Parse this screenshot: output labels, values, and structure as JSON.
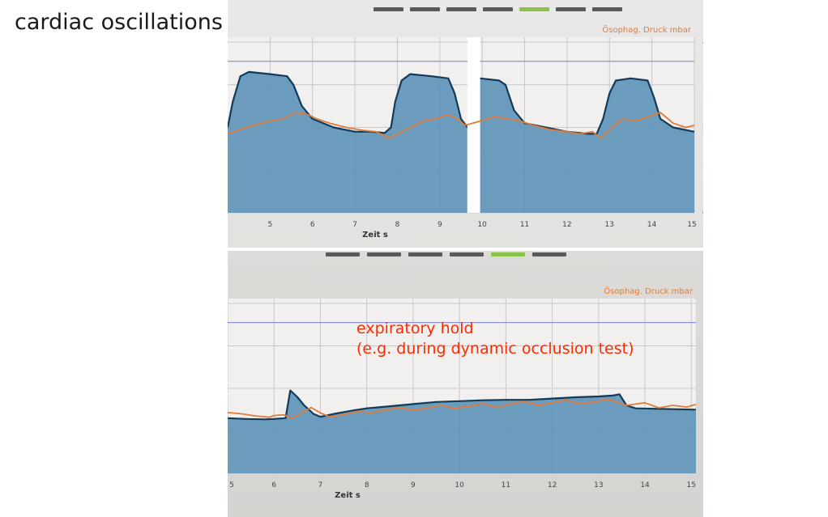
{
  "slide_title": "cardiac oscillations",
  "colors": {
    "area_fill": "#5f95b8",
    "area_line": "#123a5a",
    "esophageal": "#e07b39",
    "reference_line": "#8a90dd",
    "annotation": "#ff2a00",
    "grid": "#c7c7c9",
    "tab_gray": "#5a5a5a",
    "tab_green": "#8bc34a"
  },
  "chart_data": [
    {
      "type": "line",
      "title": "Ösophag. Druck mbar",
      "xlabel": "Zeit s",
      "ylabel": "",
      "xlim": [
        4.0,
        15.0
      ],
      "ylim": [
        0,
        40
      ],
      "x_ticks": [
        "5",
        "6",
        "7",
        "8",
        "9",
        "10",
        "11",
        "12",
        "13",
        "14",
        "15"
      ],
      "y_ticks": [
        "0",
        "10",
        "20",
        "30",
        "40"
      ],
      "reference_line": 35.5,
      "tabs": 7,
      "active_tab": 4,
      "gap": [
        9.65,
        9.95
      ],
      "series": [
        {
          "style": "area",
          "points": [
            [
              4.0,
              20
            ],
            [
              4.12,
              26
            ],
            [
              4.3,
              32
            ],
            [
              4.5,
              33
            ],
            [
              5.0,
              32.5
            ],
            [
              5.4,
              32
            ],
            [
              5.55,
              30
            ],
            [
              5.75,
              25
            ],
            [
              6.0,
              22
            ],
            [
              6.5,
              20
            ],
            [
              7.0,
              19
            ],
            [
              7.4,
              19
            ],
            [
              7.7,
              18.7
            ],
            [
              7.85,
              20
            ],
            [
              7.95,
              26
            ],
            [
              8.1,
              31
            ],
            [
              8.3,
              32.5
            ],
            [
              8.8,
              32
            ],
            [
              9.2,
              31.5
            ],
            [
              9.35,
              28
            ],
            [
              9.5,
              22
            ],
            [
              9.65,
              20
            ]
          ]
        },
        {
          "style": "area",
          "points": [
            [
              9.95,
              31.5
            ],
            [
              10.4,
              31
            ],
            [
              10.55,
              30
            ],
            [
              10.75,
              24
            ],
            [
              11.0,
              21
            ],
            [
              11.5,
              20
            ],
            [
              12.0,
              19
            ],
            [
              12.5,
              18.5
            ],
            [
              12.7,
              18.5
            ],
            [
              12.85,
              22
            ],
            [
              13.0,
              28
            ],
            [
              13.15,
              31
            ],
            [
              13.5,
              31.5
            ],
            [
              13.9,
              31
            ],
            [
              14.05,
              27
            ],
            [
              14.2,
              22
            ],
            [
              14.5,
              20
            ],
            [
              15.0,
              19
            ]
          ]
        },
        {
          "name": "Ösophag. Druck",
          "style": "line",
          "points": [
            [
              4.0,
              18.5
            ],
            [
              4.3,
              19.5
            ],
            [
              4.6,
              20.5
            ],
            [
              5.0,
              21.5
            ],
            [
              5.3,
              22
            ],
            [
              5.6,
              23.5
            ],
            [
              5.9,
              23
            ],
            [
              6.1,
              22
            ],
            [
              6.4,
              21
            ],
            [
              6.8,
              20
            ],
            [
              7.2,
              19.3
            ],
            [
              7.5,
              19
            ],
            [
              7.8,
              17.5
            ],
            [
              8.0,
              18.5
            ],
            [
              8.3,
              20
            ],
            [
              8.6,
              21.5
            ],
            [
              8.9,
              22
            ],
            [
              9.2,
              23
            ],
            [
              9.4,
              22
            ],
            [
              9.6,
              20.5
            ],
            [
              9.95,
              21.5
            ],
            [
              10.3,
              22.5
            ],
            [
              10.6,
              22
            ],
            [
              10.9,
              21.5
            ],
            [
              11.2,
              20.5
            ],
            [
              11.6,
              19.5
            ],
            [
              12.0,
              19
            ],
            [
              12.3,
              18.5
            ],
            [
              12.6,
              19
            ],
            [
              12.8,
              17.5
            ],
            [
              13.0,
              19.5
            ],
            [
              13.3,
              22
            ],
            [
              13.6,
              21.5
            ],
            [
              13.9,
              22.5
            ],
            [
              14.2,
              23.5
            ],
            [
              14.5,
              21
            ],
            [
              14.8,
              20
            ],
            [
              15.0,
              20.5
            ]
          ]
        }
      ]
    },
    {
      "type": "line",
      "title": "Ösophag. Druck mbar",
      "xlabel": "Zeit s",
      "ylabel": "",
      "xlim": [
        5.0,
        15.1
      ],
      "ylim": [
        0,
        40
      ],
      "x_ticks": [
        "5",
        "6",
        "7",
        "8",
        "9",
        "10",
        "11",
        "12",
        "13",
        "14",
        "15"
      ],
      "y_ticks": [
        "0",
        "10",
        "20",
        "30",
        "40"
      ],
      "reference_line": 35.5,
      "tabs": 6,
      "active_tab": 4,
      "annotation": [
        "expiratory hold",
        "(e.g. during dynamic occlusion test)"
      ],
      "series": [
        {
          "style": "area",
          "points": [
            [
              5.0,
              13
            ],
            [
              5.4,
              12.8
            ],
            [
              5.8,
              12.7
            ],
            [
              6.0,
              12.8
            ],
            [
              6.25,
              13
            ],
            [
              6.35,
              19.5
            ],
            [
              6.5,
              18
            ],
            [
              6.65,
              16
            ],
            [
              6.85,
              14
            ],
            [
              7.0,
              13.3
            ],
            [
              7.3,
              14
            ],
            [
              7.7,
              14.8
            ],
            [
              8.0,
              15.3
            ],
            [
              8.5,
              15.8
            ],
            [
              9.0,
              16.3
            ],
            [
              9.5,
              16.8
            ],
            [
              10.0,
              17
            ],
            [
              10.5,
              17.2
            ],
            [
              11.0,
              17.3
            ],
            [
              11.5,
              17.3
            ],
            [
              12.0,
              17.6
            ],
            [
              12.5,
              17.9
            ],
            [
              13.0,
              18.1
            ],
            [
              13.3,
              18.3
            ],
            [
              13.45,
              18.6
            ],
            [
              13.6,
              16
            ],
            [
              13.8,
              15.3
            ],
            [
              14.2,
              15.2
            ],
            [
              14.6,
              15.1
            ],
            [
              15.1,
              15
            ]
          ]
        },
        {
          "name": "Ösophag. Druck",
          "style": "line",
          "points": [
            [
              5.0,
              14.3
            ],
            [
              5.3,
              14
            ],
            [
              5.6,
              13.5
            ],
            [
              5.9,
              13.2
            ],
            [
              6.0,
              13.6
            ],
            [
              6.2,
              13.8
            ],
            [
              6.4,
              13
            ],
            [
              6.6,
              14.2
            ],
            [
              6.8,
              15.5
            ],
            [
              7.0,
              14.2
            ],
            [
              7.2,
              13.3
            ],
            [
              7.5,
              13.8
            ],
            [
              7.8,
              14.6
            ],
            [
              8.1,
              14.2
            ],
            [
              8.4,
              14.9
            ],
            [
              8.7,
              15.5
            ],
            [
              9.0,
              14.8
            ],
            [
              9.3,
              15.4
            ],
            [
              9.6,
              16
            ],
            [
              9.9,
              15.3
            ],
            [
              10.2,
              15.8
            ],
            [
              10.5,
              16.4
            ],
            [
              10.8,
              15.5
            ],
            [
              11.1,
              16.3
            ],
            [
              11.4,
              16.9
            ],
            [
              11.7,
              16
            ],
            [
              12.0,
              16.6
            ],
            [
              12.3,
              17.2
            ],
            [
              12.6,
              16.3
            ],
            [
              12.9,
              16.8
            ],
            [
              13.2,
              17.4
            ],
            [
              13.4,
              16.8
            ],
            [
              13.6,
              16
            ],
            [
              13.8,
              16.3
            ],
            [
              14.0,
              16.6
            ],
            [
              14.3,
              15.4
            ],
            [
              14.6,
              16
            ],
            [
              14.9,
              15.6
            ],
            [
              15.1,
              16.2
            ]
          ]
        }
      ]
    }
  ]
}
